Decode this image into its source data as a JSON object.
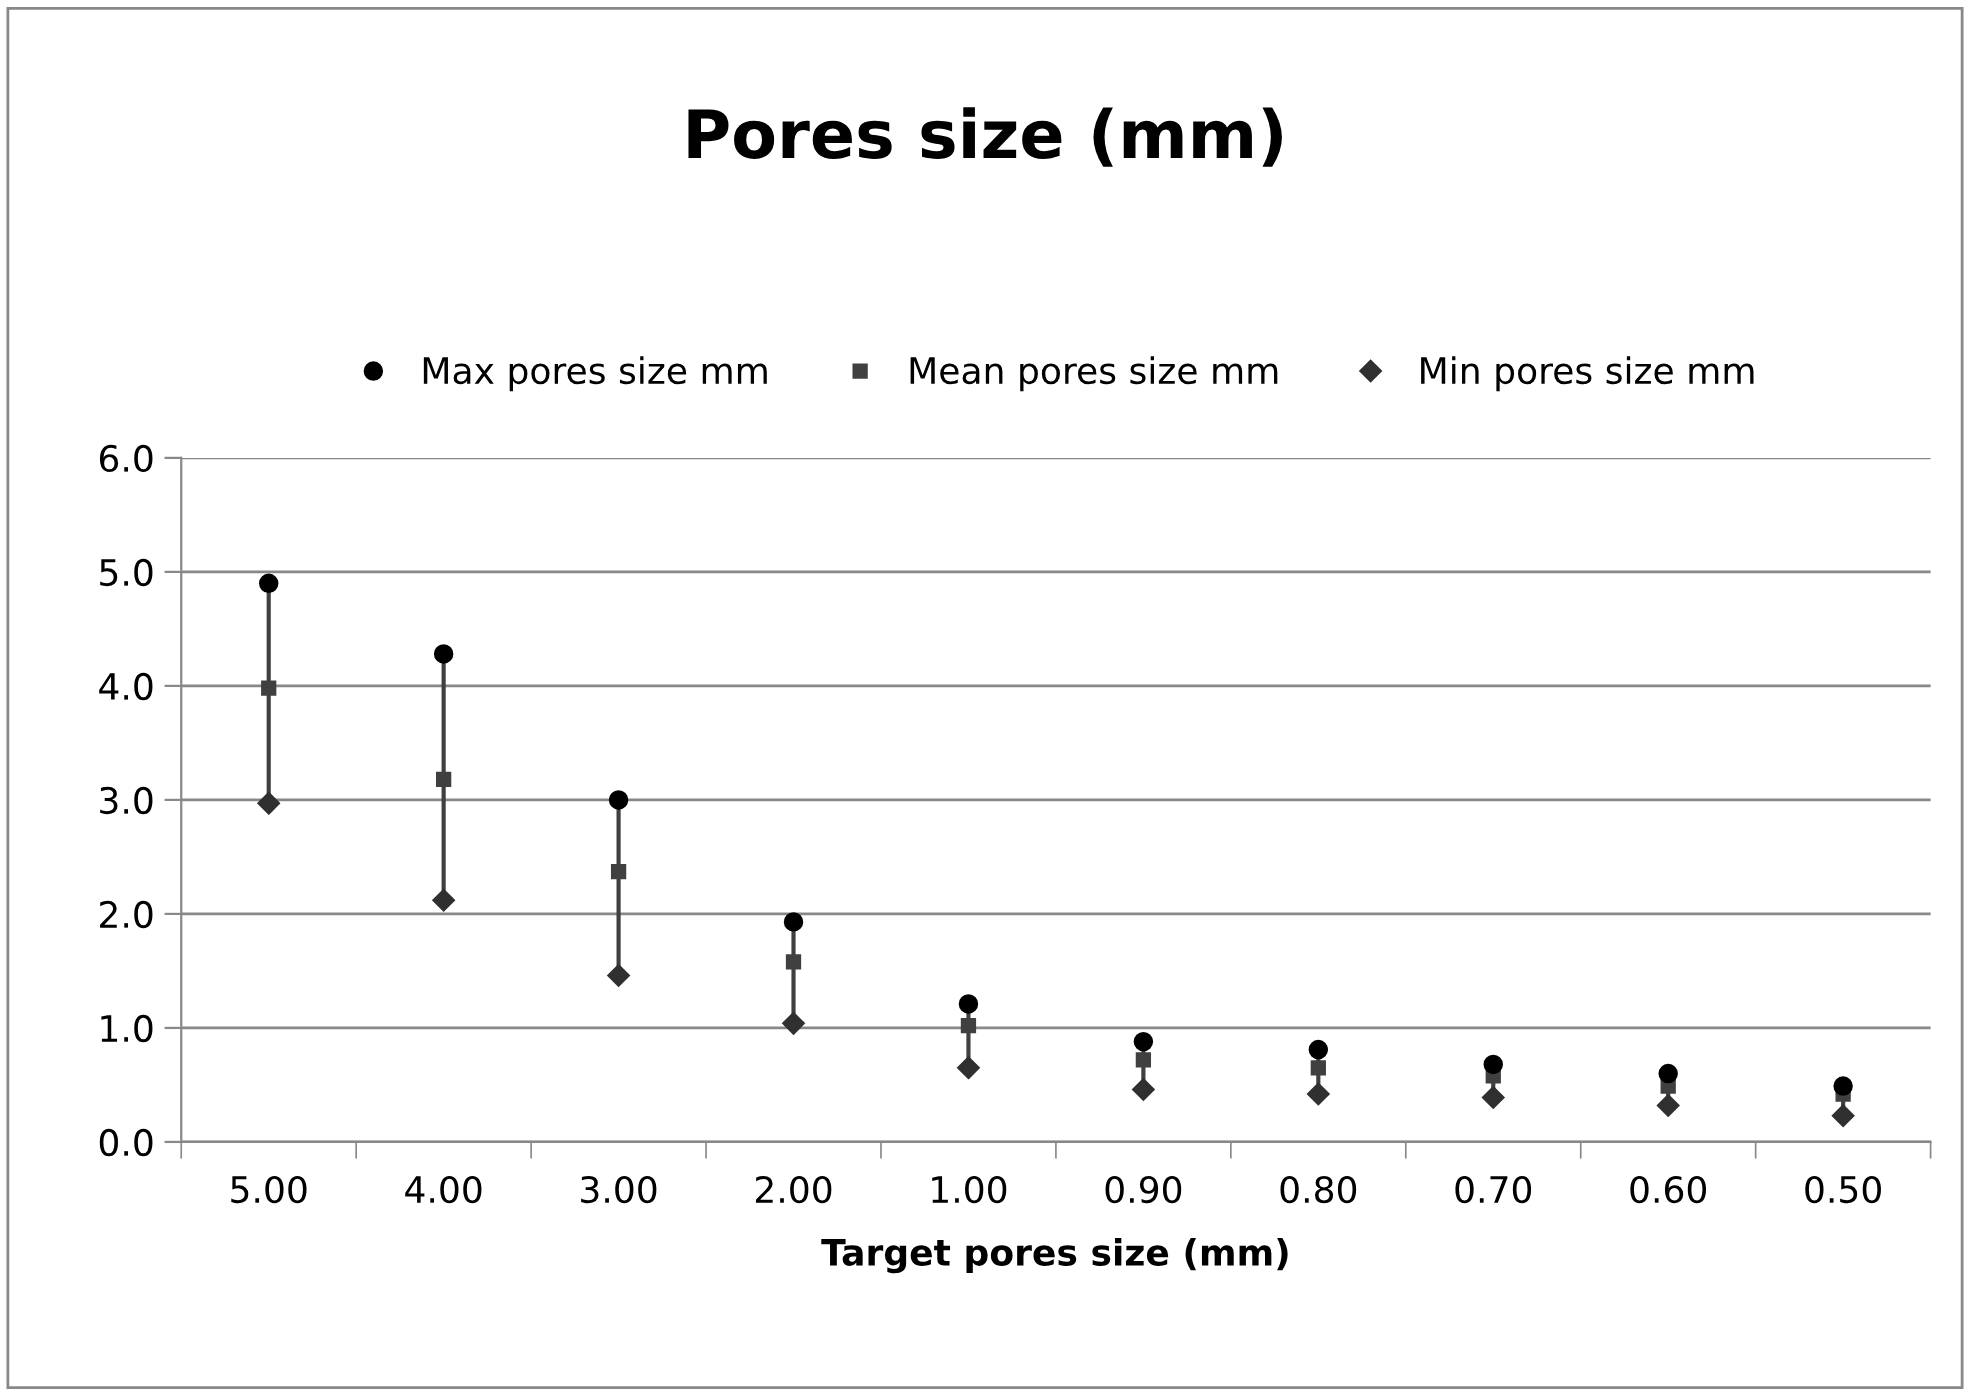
{
  "chart_data": {
    "type": "scatter",
    "title": "Pores size (mm)",
    "xlabel": "Target pores size (mm)",
    "categories": [
      "5.00",
      "4.00",
      "3.00",
      "2.00",
      "1.00",
      "0.90",
      "0.80",
      "0.70",
      "0.60",
      "0.50"
    ],
    "series": [
      {
        "name": "Max pores size mm",
        "color": "#000000",
        "marker": "circle",
        "values": [
          4.9,
          4.28,
          3.0,
          1.93,
          1.21,
          0.88,
          0.81,
          0.68,
          0.6,
          0.49
        ]
      },
      {
        "name": "Mean pores size mm",
        "color": "#404040",
        "marker": "square",
        "values": [
          3.98,
          3.18,
          2.37,
          1.58,
          1.02,
          0.72,
          0.65,
          0.58,
          0.49,
          0.42
        ]
      },
      {
        "name": "Min pores size mm",
        "color": "#303030",
        "marker": "diamond",
        "values": [
          2.97,
          2.12,
          1.46,
          1.04,
          0.65,
          0.46,
          0.42,
          0.39,
          0.32,
          0.23
        ]
      }
    ],
    "ylim": [
      0,
      6
    ],
    "yticks": [
      {
        "value": 0,
        "label": "0.0"
      },
      {
        "value": 1,
        "label": "1.0"
      },
      {
        "value": 2,
        "label": "2.0"
      },
      {
        "value": 3,
        "label": "3.0"
      },
      {
        "value": 4,
        "label": "4.0"
      },
      {
        "value": 5,
        "label": "5.0"
      },
      {
        "value": 6,
        "label": "6.0"
      }
    ],
    "grid": "y",
    "legend": "top"
  }
}
